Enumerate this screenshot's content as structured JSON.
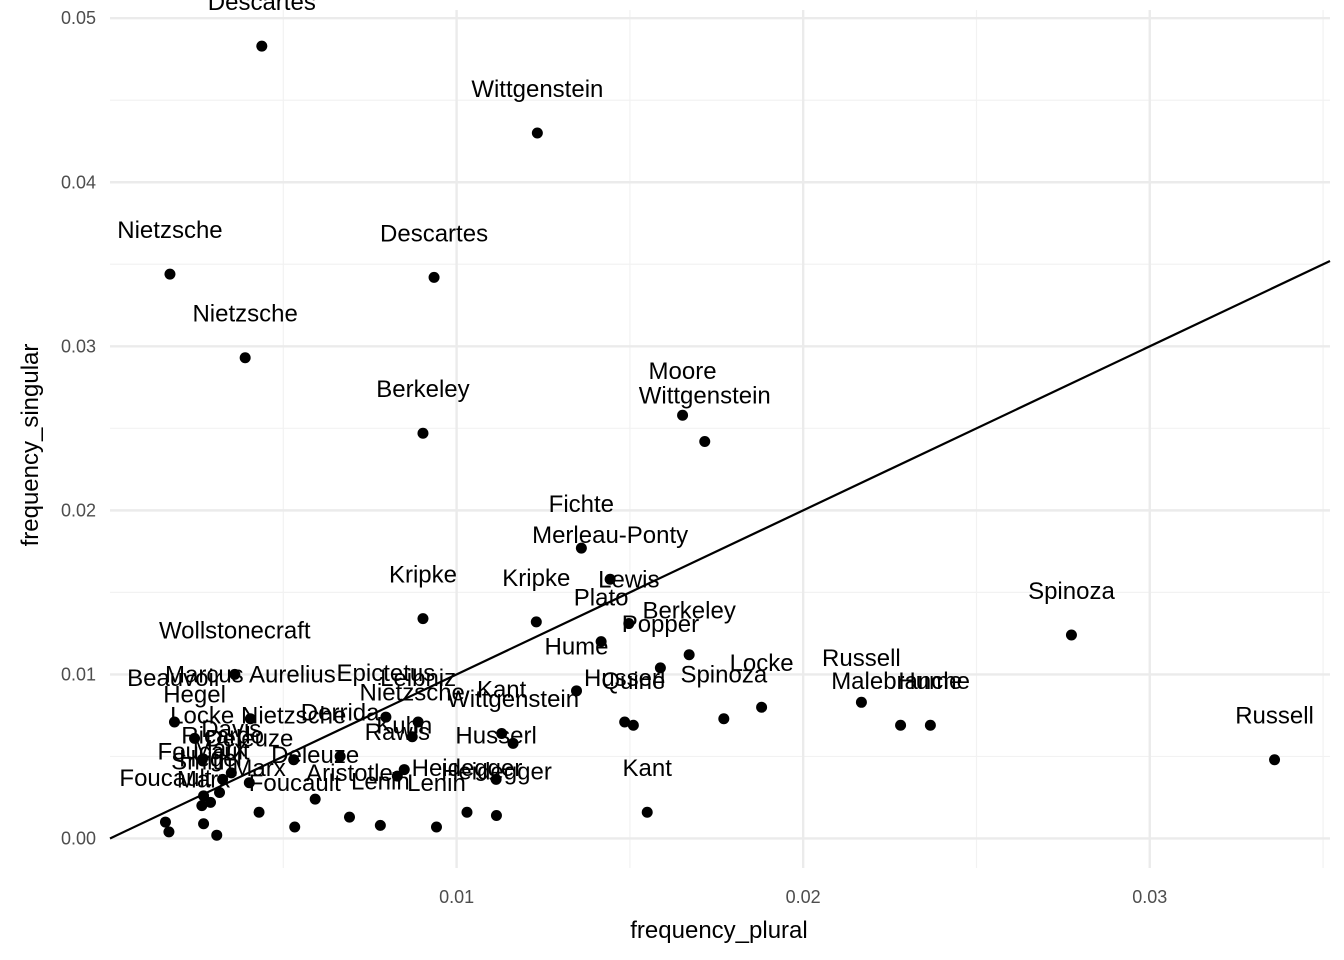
{
  "chart_data": {
    "type": "scatter",
    "title": "",
    "xlabel": "frequency_plural",
    "ylabel": "frequency_singular",
    "xlim": [
      0.0,
      0.0352
    ],
    "ylim": [
      -0.0018,
      0.0505
    ],
    "x_ticks": [
      0.01,
      0.02,
      0.03
    ],
    "x_tick_labels": [
      "0.01",
      "0.02",
      "0.03"
    ],
    "y_ticks": [
      0.0,
      0.01,
      0.02,
      0.03,
      0.04,
      0.05
    ],
    "y_tick_labels": [
      "0.00",
      "0.01",
      "0.02",
      "0.03",
      "0.04",
      "0.05"
    ],
    "grid": true,
    "reference_line": {
      "slope": 1,
      "intercept": 0
    },
    "points": [
      {
        "label": "Descartes",
        "x": 0.00438,
        "y": 0.0483
      },
      {
        "label": "Wittgenstein",
        "x": 0.01233,
        "y": 0.043
      },
      {
        "label": "Nietzsche",
        "x": 0.00173,
        "y": 0.0344
      },
      {
        "label": "Descartes",
        "x": 0.00935,
        "y": 0.0342
      },
      {
        "label": "Nietzsche",
        "x": 0.0039,
        "y": 0.0293
      },
      {
        "label": "Berkeley",
        "x": 0.00903,
        "y": 0.0247
      },
      {
        "label": "Moore",
        "x": 0.01652,
        "y": 0.0258
      },
      {
        "label": "Wittgenstein",
        "x": 0.01716,
        "y": 0.0242
      },
      {
        "label": "Fichte",
        "x": 0.0136,
        "y": 0.0177
      },
      {
        "label": "Merleau-Ponty",
        "x": 0.01443,
        "y": 0.0158
      },
      {
        "label": "Kripke",
        "x": 0.00903,
        "y": 0.0134
      },
      {
        "label": "Kripke",
        "x": 0.0123,
        "y": 0.0132
      },
      {
        "label": "Lewis",
        "x": 0.01497,
        "y": 0.0131
      },
      {
        "label": "Plato",
        "x": 0.01417,
        "y": 0.012
      },
      {
        "label": "Berkeley",
        "x": 0.01671,
        "y": 0.0112
      },
      {
        "label": "Popper",
        "x": 0.01588,
        "y": 0.0104
      },
      {
        "label": "Spinoza",
        "x": 0.02774,
        "y": 0.0124
      },
      {
        "label": "Wollstonecraft",
        "x": 0.0036,
        "y": 0.01
      },
      {
        "label": "Hume",
        "x": 0.01346,
        "y": 0.009
      },
      {
        "label": "Locke",
        "x": 0.0188,
        "y": 0.008
      },
      {
        "label": "Russell",
        "x": 0.02168,
        "y": 0.0083
      },
      {
        "label": "Malebranche",
        "x": 0.02281,
        "y": 0.0069
      },
      {
        "label": "Hume",
        "x": 0.02367,
        "y": 0.0069
      },
      {
        "label": "Russell",
        "x": 0.0336,
        "y": 0.0048
      },
      {
        "label": "Husserl",
        "x": 0.01485,
        "y": 0.0071
      },
      {
        "label": "Quine",
        "x": 0.0151,
        "y": 0.0069
      },
      {
        "label": "Spinoza",
        "x": 0.01771,
        "y": 0.0073
      },
      {
        "label": "Beauvoir",
        "x": 0.00186,
        "y": 0.0071
      },
      {
        "label": "Marcus Aurelius",
        "x": 0.00405,
        "y": 0.0073
      },
      {
        "label": "Epictetus",
        "x": 0.00796,
        "y": 0.0074
      },
      {
        "label": "Leibniz",
        "x": 0.00889,
        "y": 0.0071
      },
      {
        "label": "Kant",
        "x": 0.0113,
        "y": 0.0064
      },
      {
        "label": "Hegel",
        "x": 0.00244,
        "y": 0.0061
      },
      {
        "label": "Nietzsche",
        "x": 0.00872,
        "y": 0.0062
      },
      {
        "label": "Wittgenstein",
        "x": 0.01163,
        "y": 0.0058
      },
      {
        "label": "Locke",
        "x": 0.00266,
        "y": 0.0048
      },
      {
        "label": "Nietzsche",
        "x": 0.0053,
        "y": 0.0048
      },
      {
        "label": "Derrida",
        "x": 0.00664,
        "y": 0.005
      },
      {
        "label": "Kuhn",
        "x": 0.00849,
        "y": 0.0042
      },
      {
        "label": "Rawls",
        "x": 0.00829,
        "y": 0.0038
      },
      {
        "label": "Husserl",
        "x": 0.01114,
        "y": 0.0036
      },
      {
        "label": "Davis",
        "x": 0.0035,
        "y": 0.004
      },
      {
        "label": "Ricardo",
        "x": 0.00325,
        "y": 0.0036
      },
      {
        "label": "Deleuze",
        "x": 0.00402,
        "y": 0.0034
      },
      {
        "label": "Foucault",
        "x": 0.0027,
        "y": 0.0026
      },
      {
        "label": "Marx",
        "x": 0.00316,
        "y": 0.0028
      },
      {
        "label": "Kant",
        "x": 0.0155,
        "y": 0.0016
      },
      {
        "label": "Heidegger",
        "x": 0.0103,
        "y": 0.0016
      },
      {
        "label": "Heidegger",
        "x": 0.01115,
        "y": 0.0014
      },
      {
        "label": "Deleuze",
        "x": 0.00592,
        "y": 0.0024
      },
      {
        "label": "Aristotle",
        "x": 0.00691,
        "y": 0.0013
      },
      {
        "label": "Lenin",
        "x": 0.0078,
        "y": 0.0008
      },
      {
        "label": "Foucault",
        "x": 0.00533,
        "y": 0.0007
      },
      {
        "label": "Lenin",
        "x": 0.00942,
        "y": 0.0007
      },
      {
        "label": "Smith",
        "x": 0.00265,
        "y": 0.002
      },
      {
        "label": "Hegel",
        "x": 0.0029,
        "y": 0.0022
      },
      {
        "label": "Marx",
        "x": 0.0043,
        "y": 0.0016
      },
      {
        "label": "Foucault",
        "x": 0.0016,
        "y": 0.001
      },
      {
        "label": "Marx",
        "x": 0.0027,
        "y": 0.0009
      },
      {
        "label": "Foucault",
        "x": 0.0017,
        "y": 0.0004
      },
      {
        "label": "Marx",
        "x": 0.00308,
        "y": 0.0002
      }
    ],
    "labels": [
      {
        "text": "Descartes",
        "x": 0.00438,
        "y": 0.0505
      },
      {
        "text": "Wittgenstein",
        "x": 0.01233,
        "y": 0.0452
      },
      {
        "text": "Nietzsche",
        "x": 0.00173,
        "y": 0.0366
      },
      {
        "text": "Descartes",
        "x": 0.00935,
        "y": 0.0364
      },
      {
        "text": "Nietzsche",
        "x": 0.0039,
        "y": 0.0315
      },
      {
        "text": "Berkeley",
        "x": 0.00903,
        "y": 0.0269
      },
      {
        "text": "Moore",
        "x": 0.01652,
        "y": 0.028
      },
      {
        "text": "Wittgenstein",
        "x": 0.01716,
        "y": 0.0265
      },
      {
        "text": "Fichte",
        "x": 0.0136,
        "y": 0.0199
      },
      {
        "text": "Merleau-Ponty",
        "x": 0.01443,
        "y": 0.018
      },
      {
        "text": "Kripke",
        "x": 0.00903,
        "y": 0.0156
      },
      {
        "text": "Kripke",
        "x": 0.0123,
        "y": 0.0154
      },
      {
        "text": "Lewis",
        "x": 0.01497,
        "y": 0.0153
      },
      {
        "text": "Plato",
        "x": 0.01417,
        "y": 0.0142
      },
      {
        "text": "Berkeley",
        "x": 0.01671,
        "y": 0.0134
      },
      {
        "text": "Popper",
        "x": 0.01588,
        "y": 0.0126
      },
      {
        "text": "Spinoza",
        "x": 0.02774,
        "y": 0.0146
      },
      {
        "text": "Wollstonecraft",
        "x": 0.0036,
        "y": 0.0122
      },
      {
        "text": "Hume",
        "x": 0.01346,
        "y": 0.0112
      },
      {
        "text": "Locke",
        "x": 0.0188,
        "y": 0.0102
      },
      {
        "text": "Russell",
        "x": 0.02168,
        "y": 0.0105
      },
      {
        "text": "Malebranche",
        "x": 0.02281,
        "y": 0.0091
      },
      {
        "text": "Hume",
        "x": 0.02367,
        "y": 0.0091
      },
      {
        "text": "Russell",
        "x": 0.0336,
        "y": 0.007
      },
      {
        "text": "Husserl",
        "x": 0.01485,
        "y": 0.0093
      },
      {
        "text": "Quine",
        "x": 0.0151,
        "y": 0.0091
      },
      {
        "text": "Spinoza",
        "x": 0.01771,
        "y": 0.0095
      },
      {
        "text": "Beauvoir",
        "x": 0.00186,
        "y": 0.0093
      },
      {
        "text": "Marcus Aurelius",
        "x": 0.00405,
        "y": 0.0095
      },
      {
        "text": "Epictetus",
        "x": 0.00796,
        "y": 0.0096
      },
      {
        "text": "Leibniz",
        "x": 0.00889,
        "y": 0.0093
      },
      {
        "text": "Kant",
        "x": 0.0113,
        "y": 0.0086
      },
      {
        "text": "Hegel",
        "x": 0.00244,
        "y": 0.0083
      },
      {
        "text": "Nietzsche",
        "x": 0.00872,
        "y": 0.0084
      },
      {
        "text": "Wittgenstein",
        "x": 0.01163,
        "y": 0.008
      },
      {
        "text": "Locke",
        "x": 0.00266,
        "y": 0.007
      },
      {
        "text": "Nietzsche",
        "x": 0.0053,
        "y": 0.007
      },
      {
        "text": "Derrida",
        "x": 0.00664,
        "y": 0.0072
      },
      {
        "text": "Kuhn",
        "x": 0.00849,
        "y": 0.0064
      },
      {
        "text": "Rawls",
        "x": 0.00829,
        "y": 0.006
      },
      {
        "text": "Husserl",
        "x": 0.01114,
        "y": 0.0058
      },
      {
        "text": "Davis",
        "x": 0.0035,
        "y": 0.0062
      },
      {
        "text": "Ricardo",
        "x": 0.00325,
        "y": 0.0058
      },
      {
        "text": "Deleuze",
        "x": 0.00402,
        "y": 0.0056
      },
      {
        "text": "Foucault",
        "x": 0.0027,
        "y": 0.0048
      },
      {
        "text": "Marx",
        "x": 0.00316,
        "y": 0.005
      },
      {
        "text": "Kant",
        "x": 0.0155,
        "y": 0.0038
      },
      {
        "text": "Heidegger",
        "x": 0.0103,
        "y": 0.0038
      },
      {
        "text": "Heidegger",
        "x": 0.01115,
        "y": 0.0036
      },
      {
        "text": "Deleuze",
        "x": 0.00592,
        "y": 0.0046
      },
      {
        "text": "Aristotle",
        "x": 0.00691,
        "y": 0.0035
      },
      {
        "text": "Lenin",
        "x": 0.0078,
        "y": 0.003
      },
      {
        "text": "Foucault",
        "x": 0.00533,
        "y": 0.0029
      },
      {
        "text": "Lenin",
        "x": 0.00942,
        "y": 0.0029
      },
      {
        "text": "Smith",
        "x": 0.00265,
        "y": 0.0042
      },
      {
        "text": "Hegel",
        "x": 0.0029,
        "y": 0.0044
      },
      {
        "text": "Marx",
        "x": 0.0043,
        "y": 0.0038
      },
      {
        "text": "Foucault",
        "x": 0.0016,
        "y": 0.0032
      },
      {
        "text": "Marx",
        "x": 0.0027,
        "y": 0.0031
      }
    ]
  }
}
